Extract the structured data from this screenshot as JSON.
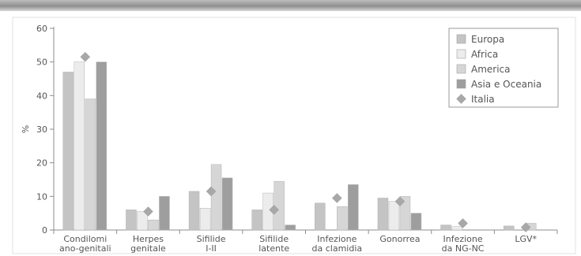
{
  "chart_data": {
    "type": "bar",
    "ylabel": "%",
    "ylim": [
      0,
      60
    ],
    "yticks": [
      0,
      10,
      20,
      30,
      40,
      50,
      60
    ],
    "grid": false,
    "legend_position": "top-right",
    "categories": [
      [
        "Condilomi",
        "ano-genitali"
      ],
      [
        "Herpes",
        "genitale"
      ],
      [
        "Sifilide",
        "I-II"
      ],
      [
        "Sifilide",
        "latente"
      ],
      [
        "Infezione",
        "da clamidia"
      ],
      [
        "Gonorrea"
      ],
      [
        "Infezione",
        "da NG-NC"
      ],
      [
        "LGV*"
      ]
    ],
    "series": [
      {
        "name": "Europa",
        "type": "bar",
        "color": "#c4c4c4",
        "values": [
          47,
          6,
          11.5,
          6,
          8,
          9.5,
          1.5,
          1.2
        ]
      },
      {
        "name": "Africa",
        "type": "bar",
        "color": "#ececec",
        "values": [
          50,
          5.5,
          6.5,
          11,
          0,
          8.5,
          1,
          0
        ]
      },
      {
        "name": "America",
        "type": "bar",
        "color": "#d6d6d6",
        "values": [
          39,
          3,
          19.5,
          14.5,
          7,
          10,
          0,
          2
        ]
      },
      {
        "name": "Asia e Oceania",
        "type": "bar",
        "color": "#9e9e9e",
        "values": [
          50,
          10,
          15.5,
          1.5,
          13.5,
          5,
          0,
          0
        ]
      },
      {
        "name": "Italia",
        "type": "marker",
        "color": "#a8a8a8",
        "values": [
          51.5,
          5.5,
          11.5,
          6,
          9.5,
          8.5,
          2,
          0.8
        ]
      }
    ]
  }
}
